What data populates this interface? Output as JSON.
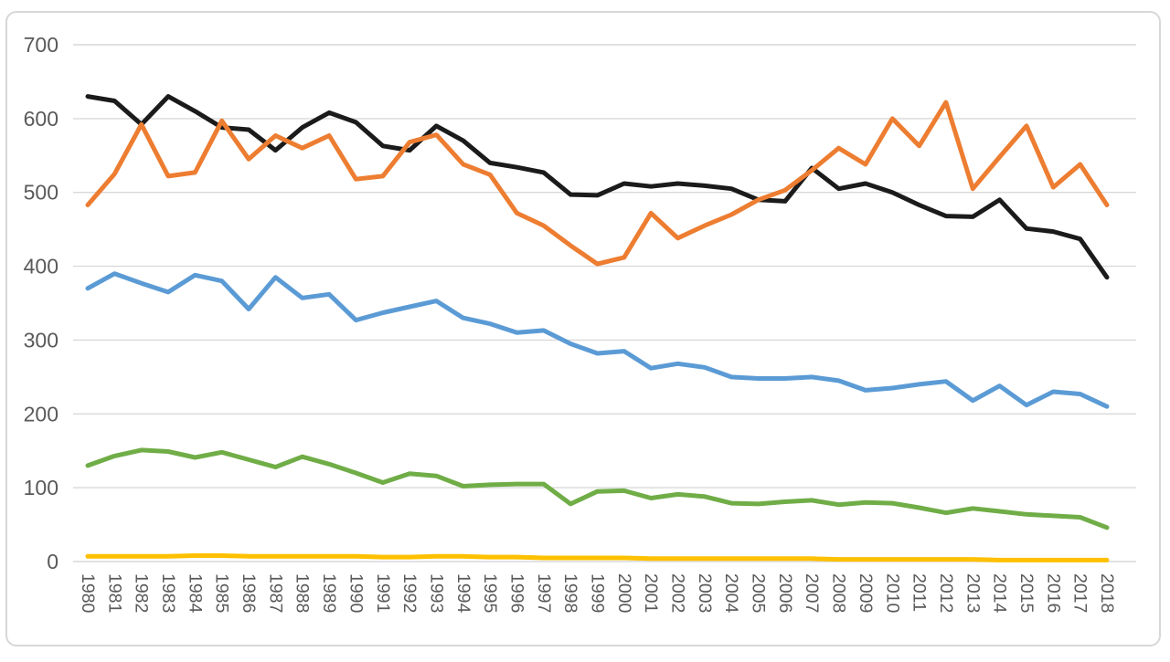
{
  "chart_data": {
    "type": "line",
    "title": "",
    "xlabel": "",
    "ylabel": "",
    "legend": "none",
    "grid": "horizontal",
    "ylim": [
      0,
      700
    ],
    "y_ticks": [
      0,
      100,
      200,
      300,
      400,
      500,
      600,
      700
    ],
    "x": [
      1980,
      1981,
      1982,
      1983,
      1984,
      1985,
      1986,
      1987,
      1988,
      1989,
      1990,
      1991,
      1992,
      1993,
      1994,
      1995,
      1996,
      1997,
      1998,
      1999,
      2000,
      2001,
      2002,
      2003,
      2004,
      2005,
      2006,
      2007,
      2008,
      2009,
      2010,
      2011,
      2012,
      2013,
      2014,
      2015,
      2016,
      2017,
      2018
    ],
    "series": [
      {
        "name": "black",
        "color": "#1b1b1b",
        "values": [
          630,
          624,
          592,
          630,
          610,
          588,
          585,
          557,
          588,
          608,
          595,
          563,
          557,
          590,
          570,
          540,
          534,
          527,
          497,
          496,
          512,
          508,
          512,
          509,
          505,
          490,
          488,
          533,
          505,
          512,
          500,
          483,
          468,
          467,
          490,
          451,
          447,
          437,
          385
        ]
      },
      {
        "name": "blue",
        "color": "#5B9BD5",
        "values": [
          370,
          390,
          377,
          365,
          388,
          380,
          342,
          385,
          357,
          362,
          327,
          337,
          345,
          353,
          330,
          322,
          310,
          313,
          295,
          282,
          285,
          262,
          268,
          263,
          250,
          248,
          248,
          250,
          245,
          232,
          235,
          240,
          244,
          218,
          238,
          212,
          230,
          227,
          210
        ]
      },
      {
        "name": "green",
        "color": "#70AD47",
        "values": [
          130,
          143,
          151,
          149,
          141,
          148,
          138,
          128,
          142,
          132,
          120,
          107,
          119,
          116,
          102,
          104,
          105,
          105,
          78,
          95,
          96,
          86,
          91,
          88,
          79,
          78,
          81,
          83,
          77,
          80,
          79,
          73,
          66,
          72,
          68,
          64,
          62,
          60,
          46
        ]
      },
      {
        "name": "yellow",
        "color": "#FFC000",
        "values": [
          7,
          7,
          7,
          7,
          8,
          8,
          7,
          7,
          7,
          7,
          7,
          6,
          6,
          7,
          7,
          6,
          6,
          5,
          5,
          5,
          5,
          4,
          4,
          4,
          4,
          4,
          4,
          4,
          3,
          3,
          3,
          3,
          3,
          3,
          2,
          2,
          2,
          2,
          2
        ]
      },
      {
        "name": "orange",
        "color": "#ED7D31",
        "values": [
          483,
          525,
          592,
          522,
          527,
          597,
          545,
          577,
          560,
          577,
          518,
          522,
          568,
          578,
          538,
          524,
          472,
          455,
          428,
          403,
          412,
          472,
          438,
          455,
          470,
          490,
          503,
          530,
          560,
          538,
          600,
          563,
          622,
          505,
          548,
          590,
          507,
          538,
          483
        ]
      }
    ]
  },
  "frame": {
    "background": "#FFFFFF",
    "border_color": "#D7D7D7",
    "gridline_color": "#D9D9D9",
    "tick_label_color": "#595959"
  }
}
